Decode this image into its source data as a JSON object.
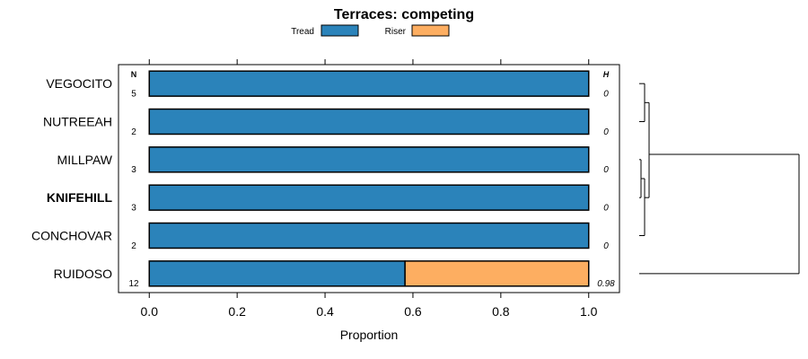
{
  "chart_data": {
    "type": "bar",
    "stacked": true,
    "orientation": "horizontal",
    "title": "Terraces: competing",
    "xlabel": "Proportion",
    "xlim": [
      -0.07,
      1.07
    ],
    "xticks": [
      "0.0",
      "0.2",
      "0.4",
      "0.6",
      "0.8",
      "1.0"
    ],
    "n_header": "N",
    "h_header": "H",
    "legend_position": "top",
    "grid": false,
    "series": [
      {
        "name": "Tread",
        "color": "#2b83ba"
      },
      {
        "name": "Riser",
        "color": "#fdae61"
      }
    ],
    "categories": [
      {
        "label": "VEGOCITO",
        "n": "5",
        "h": "0",
        "values": [
          1.0,
          0.0
        ],
        "bold": false
      },
      {
        "label": "NUTREEAH",
        "n": "2",
        "h": "0",
        "values": [
          1.0,
          0.0
        ],
        "bold": false
      },
      {
        "label": "MILLPAW",
        "n": "3",
        "h": "0",
        "values": [
          1.0,
          0.0
        ],
        "bold": false
      },
      {
        "label": "KNIFEHILL",
        "n": "3",
        "h": "0",
        "values": [
          1.0,
          0.0
        ],
        "bold": true
      },
      {
        "label": "CONCHOVAR",
        "n": "2",
        "h": "0",
        "values": [
          1.0,
          0.0
        ],
        "bold": false
      },
      {
        "label": "RUIDOSO",
        "n": "12",
        "h": "0.98",
        "values": [
          0.582,
          0.418
        ],
        "bold": false
      }
    ],
    "dendrogram": true
  }
}
